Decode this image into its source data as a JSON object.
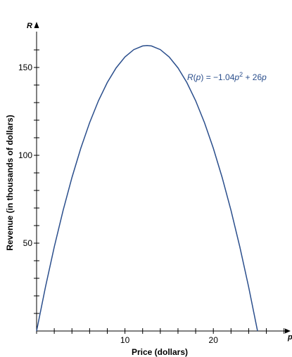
{
  "chart_data": {
    "type": "line",
    "title": "",
    "xlabel": "Price (dollars)",
    "ylabel": "Revenue (in thousands of dollars)",
    "x_axis_variable": "p",
    "y_axis_variable": "R",
    "xlim": [
      0,
      25
    ],
    "ylim": [
      0,
      170
    ],
    "x_major_ticks": [
      10,
      20
    ],
    "x_minor_step": 2,
    "y_major_ticks": [
      50,
      100,
      150
    ],
    "y_minor_step": 10,
    "grid": false,
    "legend": "none",
    "series": [
      {
        "color": "#2a4e8c",
        "x": [
          0,
          1,
          2,
          3,
          4,
          5,
          6,
          7,
          8,
          9,
          10,
          11,
          12,
          12.5,
          13,
          14,
          15,
          16,
          17,
          18,
          19,
          20,
          21,
          22,
          23,
          24,
          25
        ],
        "y": [
          0,
          24.96,
          47.84,
          68.64,
          87.36,
          104,
          118.56,
          131.04,
          141.44,
          149.76,
          156,
          160.16,
          162.24,
          162.5,
          162.24,
          160.16,
          156,
          149.76,
          141.44,
          131.04,
          118.56,
          104,
          87.36,
          68.64,
          47.84,
          24.96,
          0
        ]
      }
    ],
    "annotation": {
      "func": "R",
      "var": "p",
      "eq_text": " = −1.04",
      "exp": "2",
      "tail": " + 26",
      "color": "#2a4e8c"
    }
  }
}
